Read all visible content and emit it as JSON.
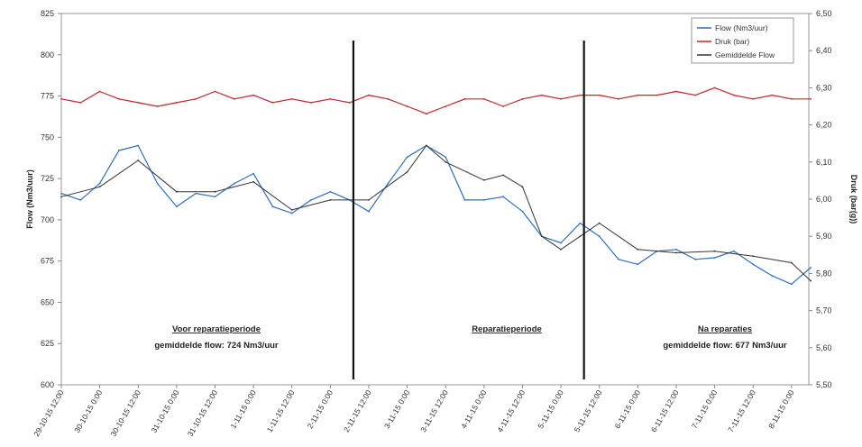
{
  "chart_data": {
    "type": "line",
    "title": "",
    "xlabel": "",
    "ylabel_left": "Flow (Nm3/uur)",
    "ylabel_right": "Druk (bar(g))",
    "ylim_left": [
      600,
      825
    ],
    "ylim_right": [
      5.5,
      6.5
    ],
    "yticks_left": [
      "600",
      "625",
      "650",
      "675",
      "700",
      "725",
      "750",
      "775",
      "800",
      "825"
    ],
    "yticks_right": [
      "5,50",
      "5,60",
      "5,70",
      "5,80",
      "5,90",
      "6,00",
      "6,10",
      "6,20",
      "6,30",
      "6,40",
      "6,50"
    ],
    "x_tick_labels": [
      "29-10-15 12:00",
      "30-10-15 0:00",
      "30-10-15 12:00",
      "31-10-15 0:00",
      "31-10-15 12:00",
      "1-11-15 0:00",
      "1-11-15 12:00",
      "2-11-15 0:00",
      "2-11-15 12:00",
      "3-11-15 0:00",
      "3-11-15 12:00",
      "4-11-15 0:00",
      "4-11-15 12:00",
      "5-11-15 0:00",
      "5-11-15 12:00",
      "6-11-15 0:00",
      "6-11-15 12:00",
      "7-11-15 0:00",
      "7-11-15 12:00",
      "8-11-15 0:00"
    ],
    "grid": false,
    "legend_position": "top-right",
    "series": [
      {
        "name": "Flow (Nm3/uur)",
        "axis": "left",
        "color": "#2e6fbe",
        "x": [
          0,
          0.5,
          1,
          1.5,
          2,
          2.5,
          3,
          3.5,
          4,
          4.5,
          5,
          5.5,
          6,
          6.5,
          7,
          7.5,
          8,
          8.5,
          9,
          9.5,
          10,
          10.5,
          11,
          11.5,
          12,
          12.5,
          13,
          13.5,
          14,
          14.5,
          15,
          15.5,
          16,
          16.5,
          17,
          17.5,
          18,
          18.5,
          19,
          19.5
        ],
        "values": [
          716,
          712,
          722,
          742,
          745,
          722,
          708,
          716,
          714,
          722,
          728,
          708,
          704,
          712,
          717,
          712,
          705,
          722,
          738,
          745,
          738,
          712,
          712,
          714,
          705,
          690,
          686,
          698,
          690,
          676,
          673,
          681,
          682,
          676,
          677,
          681,
          673,
          666,
          661,
          671
        ]
      },
      {
        "name": "Druk (bar)",
        "axis": "right",
        "color": "#c0262b",
        "x": [
          0,
          0.5,
          1,
          1.5,
          2,
          2.5,
          3,
          3.5,
          4,
          4.5,
          5,
          5.5,
          6,
          6.5,
          7,
          7.5,
          8,
          8.5,
          9,
          9.5,
          10,
          10.5,
          11,
          11.5,
          12,
          12.5,
          13,
          13.5,
          14,
          14.5,
          15,
          15.5,
          16,
          16.5,
          17,
          17.5,
          18,
          18.5,
          19,
          19.5
        ],
        "values": [
          6.27,
          6.26,
          6.29,
          6.27,
          6.26,
          6.25,
          6.26,
          6.27,
          6.29,
          6.27,
          6.28,
          6.26,
          6.27,
          6.26,
          6.27,
          6.26,
          6.28,
          6.27,
          6.25,
          6.23,
          6.25,
          6.27,
          6.27,
          6.25,
          6.27,
          6.28,
          6.27,
          6.28,
          6.28,
          6.27,
          6.28,
          6.28,
          6.29,
          6.28,
          6.3,
          6.28,
          6.27,
          6.28,
          6.27,
          6.27
        ]
      },
      {
        "name": "Gemiddelde Flow",
        "axis": "left",
        "color": "#333333",
        "x": [
          0,
          1,
          2,
          3,
          4,
          5,
          6,
          7,
          8,
          9,
          9.5,
          10,
          11,
          11.5,
          12,
          12.5,
          13,
          13.5,
          14,
          15,
          16,
          17,
          18,
          19,
          19.5
        ],
        "values": [
          714,
          720,
          736,
          717,
          717,
          723,
          706,
          712,
          712,
          729,
          745,
          735,
          724,
          727,
          720,
          690,
          682,
          690,
          698,
          682,
          680,
          681,
          678,
          674,
          663
        ]
      }
    ],
    "dividers_x": [
      7.6,
      13.6
    ],
    "annotations": [
      {
        "title": "Voor reparatieperiode",
        "text": "gemiddelde flow: 724 Nm3/uur"
      },
      {
        "title": "Reparatieperiode",
        "text": ""
      },
      {
        "title": "Na reparaties",
        "text": "gemiddelde flow: 677 Nm3/uur"
      }
    ]
  }
}
